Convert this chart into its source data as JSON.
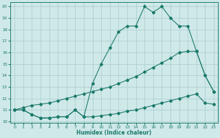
{
  "line1_x": [
    0,
    1,
    2,
    3,
    4,
    5,
    6,
    7,
    8,
    9,
    10,
    11,
    12,
    13,
    14,
    15,
    16,
    17,
    18,
    19,
    20,
    21,
    22,
    23
  ],
  "line1_y": [
    11,
    11,
    10.6,
    10.3,
    10.3,
    10.4,
    10.4,
    11.0,
    10.4,
    13.3,
    15.0,
    16.4,
    17.8,
    18.3,
    18.3,
    20.0,
    19.5,
    20.0,
    19.0,
    18.3,
    18.3,
    16.1,
    14.0,
    12.6
  ],
  "line2_x": [
    0,
    1,
    2,
    3,
    4,
    5,
    6,
    7,
    8,
    9,
    10,
    11,
    12,
    13,
    14,
    15,
    16,
    17,
    18,
    19,
    20,
    21,
    22,
    23
  ],
  "line2_y": [
    11,
    11,
    10.6,
    10.3,
    10.3,
    10.4,
    10.4,
    11.0,
    10.4,
    10.4,
    10.5,
    10.6,
    10.7,
    10.9,
    11.0,
    11.2,
    11.4,
    11.6,
    11.8,
    12.0,
    12.2,
    12.4,
    11.6,
    11.5
  ],
  "line3_x": [
    0,
    1,
    2,
    3,
    4,
    5,
    6,
    7,
    8,
    9,
    10,
    11,
    12,
    13,
    14,
    15,
    16,
    17,
    18,
    19,
    20,
    21,
    22,
    23
  ],
  "line3_y": [
    11,
    11.2,
    11.4,
    11.5,
    11.6,
    11.8,
    12.0,
    12.2,
    12.4,
    12.6,
    12.8,
    13.0,
    13.3,
    13.6,
    13.9,
    14.3,
    14.7,
    15.1,
    15.5,
    16.0,
    16.1,
    16.1,
    14.0,
    12.6
  ],
  "line_color": "#1a7a6a",
  "bg_color": "#cfe8e8",
  "grid_color": "#a8cccc",
  "xlabel": "Humidex (Indice chaleur)",
  "xlim": [
    -0.5,
    23.5
  ],
  "ylim": [
    9.9,
    20.4
  ],
  "yticks": [
    10,
    11,
    12,
    13,
    14,
    15,
    16,
    17,
    18,
    19,
    20
  ],
  "xticks": [
    0,
    1,
    2,
    3,
    4,
    5,
    6,
    7,
    8,
    9,
    10,
    11,
    12,
    13,
    14,
    15,
    16,
    17,
    18,
    19,
    20,
    21,
    22,
    23
  ],
  "tick_fontsize": 4.5,
  "xlabel_fontsize": 5.5
}
